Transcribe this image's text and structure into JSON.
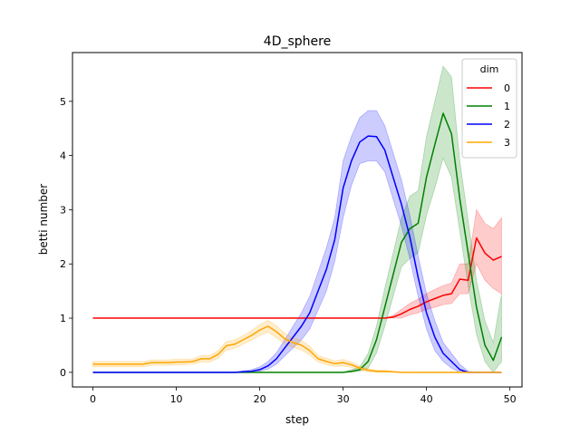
{
  "chart_data": {
    "type": "line",
    "title": "4D_sphere",
    "xlabel": "step",
    "ylabel": "betti number",
    "xlim": [
      -2.45,
      51.45
    ],
    "ylim": [
      -0.27,
      5.9
    ],
    "xticks": [
      0,
      10,
      20,
      30,
      40,
      50
    ],
    "yticks": [
      0,
      1,
      2,
      3,
      4,
      5
    ],
    "grid": false,
    "legend": {
      "title": "dim",
      "placement": "top-right"
    },
    "series": [
      {
        "name": "0",
        "color": "#ff0000",
        "x": [
          0,
          1,
          2,
          3,
          4,
          5,
          6,
          7,
          8,
          9,
          10,
          11,
          12,
          13,
          14,
          15,
          16,
          17,
          18,
          19,
          20,
          21,
          22,
          23,
          24,
          25,
          26,
          27,
          28,
          29,
          30,
          31,
          32,
          33,
          34,
          35,
          36,
          37,
          38,
          39,
          40,
          41,
          42,
          43,
          44,
          45,
          46,
          47,
          48,
          49
        ],
        "y": [
          1,
          1,
          1,
          1,
          1,
          1,
          1,
          1,
          1,
          1,
          1,
          1,
          1,
          1,
          1,
          1,
          1,
          1,
          1,
          1,
          1,
          1,
          1,
          1,
          1,
          1,
          1,
          1,
          1,
          1,
          1,
          1,
          1,
          1,
          1,
          1,
          1.02,
          1.08,
          1.16,
          1.22,
          1.3,
          1.36,
          1.42,
          1.45,
          1.72,
          1.7,
          2.48,
          2.2,
          2.07,
          2.14
        ],
        "lower": [
          1,
          1,
          1,
          1,
          1,
          1,
          1,
          1,
          1,
          1,
          1,
          1,
          1,
          1,
          1,
          1,
          1,
          1,
          1,
          1,
          1,
          1,
          1,
          1,
          1,
          1,
          1,
          1,
          1,
          1,
          1,
          1,
          1,
          1,
          1,
          1,
          1.0,
          1.0,
          1.06,
          1.1,
          1.16,
          1.2,
          1.25,
          1.27,
          1.45,
          1.45,
          2.0,
          1.7,
          1.55,
          1.45
        ],
        "upper": [
          1,
          1,
          1,
          1,
          1,
          1,
          1,
          1,
          1,
          1,
          1,
          1,
          1,
          1,
          1,
          1,
          1,
          1,
          1,
          1,
          1,
          1,
          1,
          1,
          1,
          1,
          1,
          1,
          1,
          1,
          1,
          1,
          1,
          1,
          1,
          1,
          1.05,
          1.16,
          1.27,
          1.35,
          1.45,
          1.53,
          1.6,
          1.65,
          2.0,
          2.0,
          3.0,
          2.75,
          2.65,
          2.85
        ]
      },
      {
        "name": "1",
        "color": "#008000",
        "x": [
          0,
          1,
          2,
          3,
          4,
          5,
          6,
          7,
          8,
          9,
          10,
          11,
          12,
          13,
          14,
          15,
          16,
          17,
          18,
          19,
          20,
          21,
          22,
          23,
          24,
          25,
          26,
          27,
          28,
          29,
          30,
          31,
          32,
          33,
          34,
          35,
          36,
          37,
          38,
          39,
          40,
          41,
          42,
          43,
          44,
          45,
          46,
          47,
          48,
          49
        ],
        "y": [
          0,
          0,
          0,
          0,
          0,
          0,
          0,
          0,
          0,
          0,
          0,
          0,
          0,
          0,
          0,
          0,
          0,
          0,
          0,
          0,
          0,
          0,
          0,
          0,
          0,
          0,
          0,
          0,
          0,
          0,
          0,
          0.02,
          0.05,
          0.2,
          0.6,
          1.2,
          1.8,
          2.4,
          2.65,
          2.75,
          3.6,
          4.2,
          4.78,
          4.4,
          3.2,
          2.2,
          1.2,
          0.5,
          0.22,
          0.65
        ],
        "lower": [
          0,
          0,
          0,
          0,
          0,
          0,
          0,
          0,
          0,
          0,
          0,
          0,
          0,
          0,
          0,
          0,
          0,
          0,
          0,
          0,
          0,
          0,
          0,
          0,
          0,
          0,
          0,
          0,
          0,
          0,
          0,
          0,
          0.02,
          0.08,
          0.35,
          0.85,
          1.4,
          1.95,
          2.1,
          2.2,
          2.9,
          3.4,
          3.95,
          3.6,
          2.6,
          1.6,
          0.7,
          0.2,
          0.0,
          0.2
        ],
        "upper": [
          0,
          0,
          0,
          0,
          0,
          0,
          0,
          0,
          0,
          0,
          0,
          0,
          0,
          0,
          0,
          0,
          0,
          0,
          0,
          0,
          0,
          0,
          0,
          0,
          0,
          0,
          0,
          0,
          0,
          0,
          0,
          0.05,
          0.1,
          0.35,
          0.85,
          1.55,
          2.2,
          2.85,
          3.25,
          3.35,
          4.35,
          5.0,
          5.65,
          5.45,
          3.9,
          2.8,
          1.7,
          0.95,
          0.55,
          1.45
        ]
      },
      {
        "name": "2",
        "color": "#0000ff",
        "x": [
          0,
          1,
          2,
          3,
          4,
          5,
          6,
          7,
          8,
          9,
          10,
          11,
          12,
          13,
          14,
          15,
          16,
          17,
          18,
          19,
          20,
          21,
          22,
          23,
          24,
          25,
          26,
          27,
          28,
          29,
          30,
          31,
          32,
          33,
          34,
          35,
          36,
          37,
          38,
          39,
          40,
          41,
          42,
          43,
          44,
          45,
          46,
          47,
          48,
          49
        ],
        "y": [
          0,
          0,
          0,
          0,
          0,
          0,
          0,
          0,
          0,
          0,
          0,
          0,
          0,
          0,
          0,
          0,
          0,
          0,
          0.01,
          0.02,
          0.05,
          0.12,
          0.25,
          0.45,
          0.65,
          0.85,
          1.1,
          1.5,
          1.9,
          2.45,
          3.4,
          3.9,
          4.25,
          4.36,
          4.35,
          4.1,
          3.6,
          3.1,
          2.5,
          1.75,
          1.1,
          0.65,
          0.35,
          0.2,
          0.05,
          0.0,
          0.0,
          0.0,
          0.0,
          0.0
        ],
        "lower": [
          0,
          0,
          0,
          0,
          0,
          0,
          0,
          0,
          0,
          0,
          0,
          0,
          0,
          0,
          0,
          0,
          0,
          0,
          0.0,
          0.0,
          0.02,
          0.06,
          0.15,
          0.3,
          0.45,
          0.6,
          0.8,
          1.15,
          1.5,
          2.05,
          2.85,
          3.45,
          3.85,
          3.9,
          3.9,
          3.7,
          3.2,
          2.7,
          2.1,
          1.4,
          0.8,
          0.4,
          0.2,
          0.08,
          0.0,
          0.0,
          0.0,
          0.0,
          0.0,
          0.0
        ],
        "upper": [
          0,
          0,
          0,
          0,
          0,
          0,
          0,
          0,
          0,
          0,
          0,
          0,
          0,
          0,
          0,
          0,
          0,
          0,
          0.03,
          0.05,
          0.1,
          0.2,
          0.36,
          0.6,
          0.85,
          1.1,
          1.4,
          1.85,
          2.3,
          2.85,
          3.9,
          4.35,
          4.7,
          4.83,
          4.83,
          4.55,
          4.05,
          3.55,
          2.9,
          2.15,
          1.45,
          0.95,
          0.55,
          0.35,
          0.15,
          0.02,
          0.0,
          0.0,
          0.0,
          0.0
        ]
      },
      {
        "name": "3",
        "color": "#ffa500",
        "x": [
          0,
          1,
          2,
          3,
          4,
          5,
          6,
          7,
          8,
          9,
          10,
          11,
          12,
          13,
          14,
          15,
          16,
          17,
          18,
          19,
          20,
          21,
          22,
          23,
          24,
          25,
          26,
          27,
          28,
          29,
          30,
          31,
          32,
          33,
          34,
          35,
          36,
          37,
          38,
          39,
          40,
          41,
          42,
          43,
          44,
          45,
          46,
          47,
          48,
          49
        ],
        "y": [
          0.15,
          0.15,
          0.15,
          0.15,
          0.15,
          0.15,
          0.15,
          0.18,
          0.18,
          0.18,
          0.19,
          0.19,
          0.2,
          0.25,
          0.25,
          0.33,
          0.49,
          0.52,
          0.6,
          0.68,
          0.78,
          0.85,
          0.75,
          0.62,
          0.55,
          0.5,
          0.4,
          0.25,
          0.2,
          0.16,
          0.18,
          0.14,
          0.08,
          0.04,
          0.02,
          0.02,
          0.01,
          0.0,
          0.0,
          0.0,
          0.0,
          0.0,
          0.0,
          0.0,
          0.0,
          0.0,
          0.0,
          0.0,
          0.0,
          0.0
        ],
        "lower": [
          0.1,
          0.1,
          0.1,
          0.1,
          0.1,
          0.1,
          0.1,
          0.13,
          0.13,
          0.13,
          0.14,
          0.14,
          0.15,
          0.19,
          0.19,
          0.26,
          0.41,
          0.44,
          0.52,
          0.59,
          0.68,
          0.74,
          0.64,
          0.52,
          0.46,
          0.41,
          0.32,
          0.19,
          0.14,
          0.11,
          0.12,
          0.09,
          0.04,
          0.01,
          0.0,
          0.0,
          0.0,
          0.0,
          0.0,
          0.0,
          0.0,
          0.0,
          0.0,
          0.0,
          0.0,
          0.0,
          0.0,
          0.0,
          0.0,
          0.0
        ],
        "upper": [
          0.2,
          0.2,
          0.2,
          0.2,
          0.2,
          0.2,
          0.2,
          0.23,
          0.23,
          0.23,
          0.24,
          0.24,
          0.25,
          0.31,
          0.31,
          0.4,
          0.57,
          0.6,
          0.68,
          0.77,
          0.88,
          0.96,
          0.86,
          0.72,
          0.64,
          0.59,
          0.48,
          0.31,
          0.26,
          0.21,
          0.24,
          0.19,
          0.12,
          0.07,
          0.04,
          0.04,
          0.02,
          0.01,
          0.0,
          0.0,
          0.0,
          0.0,
          0.0,
          0.0,
          0.0,
          0.0,
          0.0,
          0.0,
          0.0,
          0.0
        ]
      }
    ]
  }
}
